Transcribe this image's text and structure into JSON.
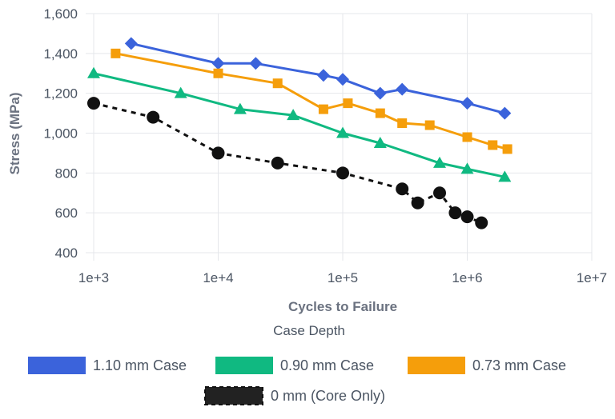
{
  "chart_data": {
    "type": "line",
    "xscale": "log",
    "xlabel": "Cycles to Failure",
    "ylabel": "Stress (MPa)",
    "xlim": [
      1000,
      10000000
    ],
    "ylim": [
      400,
      1600
    ],
    "x_ticks": [
      "1e+3",
      "1e+4",
      "1e+5",
      "1e+6",
      "1e+7"
    ],
    "y_ticks": [
      "400",
      "600",
      "800",
      "1,000",
      "1,200",
      "1,400",
      "1,600"
    ],
    "grid": true,
    "legend_title": "Case Depth",
    "legend_position": "bottom",
    "series": [
      {
        "name": "1.10 mm Case",
        "color": "#3b63db",
        "marker": "diamond",
        "dashed": false,
        "points": [
          [
            2000,
            1450
          ],
          [
            10000,
            1350
          ],
          [
            20000,
            1350
          ],
          [
            70000,
            1290
          ],
          [
            100000,
            1270
          ],
          [
            200000,
            1200
          ],
          [
            300000,
            1220
          ],
          [
            1000000,
            1150
          ],
          [
            2000000,
            1100
          ]
        ]
      },
      {
        "name": "0.90 mm Case",
        "color": "#10b981",
        "marker": "triangle",
        "dashed": false,
        "points": [
          [
            1000,
            1300
          ],
          [
            5000,
            1200
          ],
          [
            15000,
            1120
          ],
          [
            40000,
            1090
          ],
          [
            100000,
            1000
          ],
          [
            200000,
            950
          ],
          [
            600000,
            850
          ],
          [
            1000000,
            820
          ],
          [
            2000000,
            780
          ]
        ]
      },
      {
        "name": "0.73 mm Case",
        "color": "#f59e0b",
        "marker": "square",
        "dashed": false,
        "points": [
          [
            1500,
            1400
          ],
          [
            10000,
            1300
          ],
          [
            30000,
            1250
          ],
          [
            70000,
            1120
          ],
          [
            110000,
            1150
          ],
          [
            200000,
            1100
          ],
          [
            300000,
            1050
          ],
          [
            500000,
            1040
          ],
          [
            1000000,
            980
          ],
          [
            1600000,
            940
          ],
          [
            2100000,
            920
          ]
        ]
      },
      {
        "name": "0 mm (Core Only)",
        "color": "#111111",
        "marker": "circle",
        "dashed": true,
        "points": [
          [
            1000,
            1150
          ],
          [
            3000,
            1080
          ],
          [
            10000,
            900
          ],
          [
            30000,
            850
          ],
          [
            100000,
            800
          ],
          [
            300000,
            720
          ],
          [
            400000,
            650
          ],
          [
            600000,
            700
          ],
          [
            800000,
            600
          ],
          [
            1000000,
            580
          ],
          [
            1300000,
            550
          ]
        ]
      }
    ]
  }
}
